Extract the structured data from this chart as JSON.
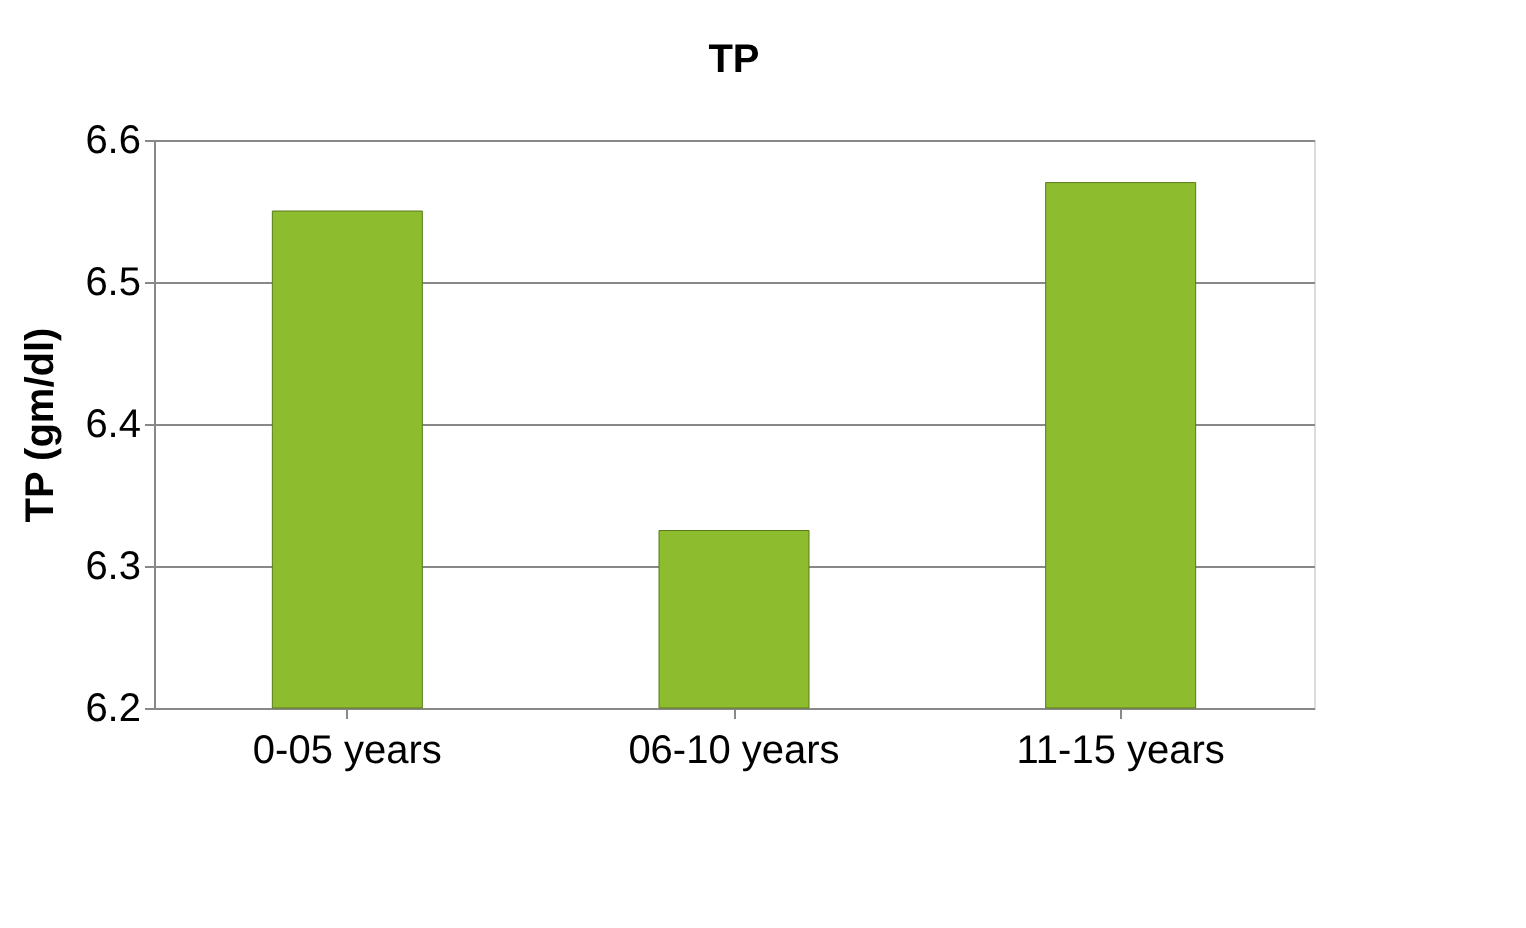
{
  "chart_data": {
    "type": "bar",
    "title": "TP",
    "ylabel": "TP (gm/dl)",
    "categories": [
      "0-05 years",
      "06-10 years",
      "11-15 years"
    ],
    "values": [
      6.55,
      6.325,
      6.57
    ],
    "color": "#8dbd2e",
    "ylim": [
      6.2,
      6.6
    ],
    "yticks": [
      6.2,
      6.3,
      6.4,
      6.5,
      6.6
    ],
    "grid": "y"
  }
}
